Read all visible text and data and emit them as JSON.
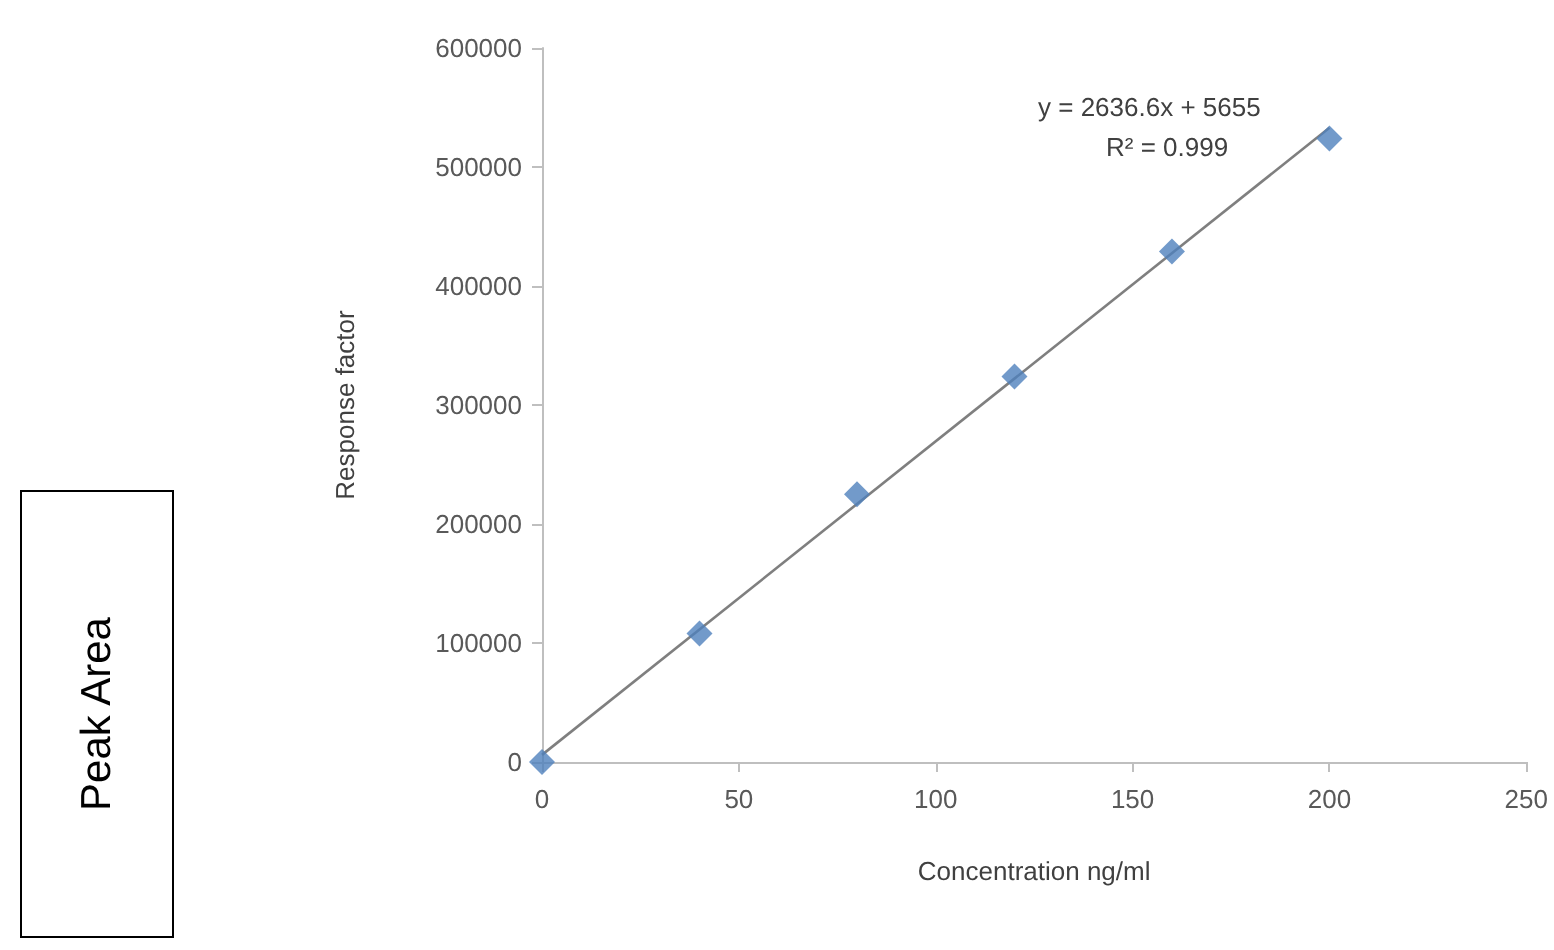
{
  "chart_data": {
    "type": "scatter",
    "xlabel": "Concentration ng/ml",
    "ylabel": "Response factor",
    "annotations": [
      "y = 2636.6x + 5655",
      "R² = 0.999",
      "Peak Area"
    ],
    "marker": "diamond",
    "series": [
      {
        "color": "#4f81bd",
        "x": [
          0,
          40,
          80,
          120,
          160,
          200
        ],
        "values": [
          0,
          108000,
          225000,
          324000,
          429000,
          524000
        ]
      },
      {
        "type": "line",
        "color": "#7f7f7f",
        "marker": "none",
        "line_style": "solid",
        "x": [
          0,
          200
        ],
        "values": [
          6000,
          533000
        ]
      }
    ],
    "xlim": [
      0,
      250
    ],
    "xticks": [
      0,
      50,
      100,
      150,
      200,
      250
    ],
    "ylim": [
      0,
      600000
    ],
    "yticks": [
      0,
      100000,
      200000,
      300000,
      400000,
      500000,
      600000
    ],
    "grid": false
  }
}
